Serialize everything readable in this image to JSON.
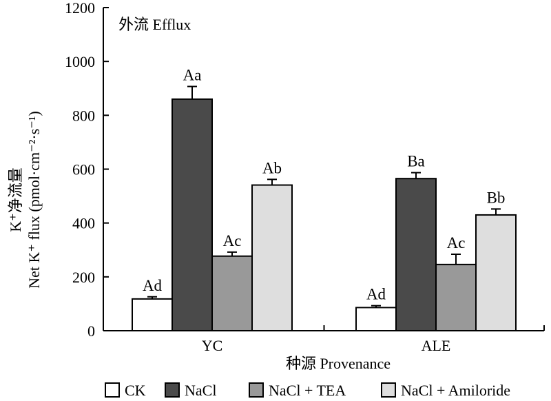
{
  "chart_data": {
    "type": "bar",
    "annotation": "外流 Efflux",
    "xlabel": "种源 Provenance",
    "ylabel_line1": "K⁺净流量",
    "ylabel_line2": "Net K⁺ flux (pmol·cm⁻²·s⁻¹)",
    "ylim": [
      0,
      1200
    ],
    "yticks": [
      0,
      200,
      400,
      600,
      800,
      1000,
      1200
    ],
    "categories": [
      "YC",
      "ALE"
    ],
    "series": [
      {
        "name": "CK",
        "color": "#ffffff",
        "values": [
          118,
          86
        ],
        "errors": [
          8,
          7
        ],
        "labels": [
          "Ad",
          "Ad"
        ]
      },
      {
        "name": "NaCl",
        "color": "#4a4a4a",
        "values": [
          860,
          565
        ],
        "errors": [
          47,
          22
        ],
        "labels": [
          "Aa",
          "Ba"
        ]
      },
      {
        "name": "NaCl + TEA",
        "color": "#999999",
        "values": [
          277,
          246
        ],
        "errors": [
          15,
          38
        ],
        "labels": [
          "Ac",
          "Ac"
        ]
      },
      {
        "name": "NaCl + Amiloride",
        "color": "#dedede",
        "values": [
          541,
          430
        ],
        "errors": [
          21,
          22
        ],
        "labels": [
          "Ab",
          "Bb"
        ]
      }
    ],
    "grid": false,
    "legend_position": "bottom"
  }
}
